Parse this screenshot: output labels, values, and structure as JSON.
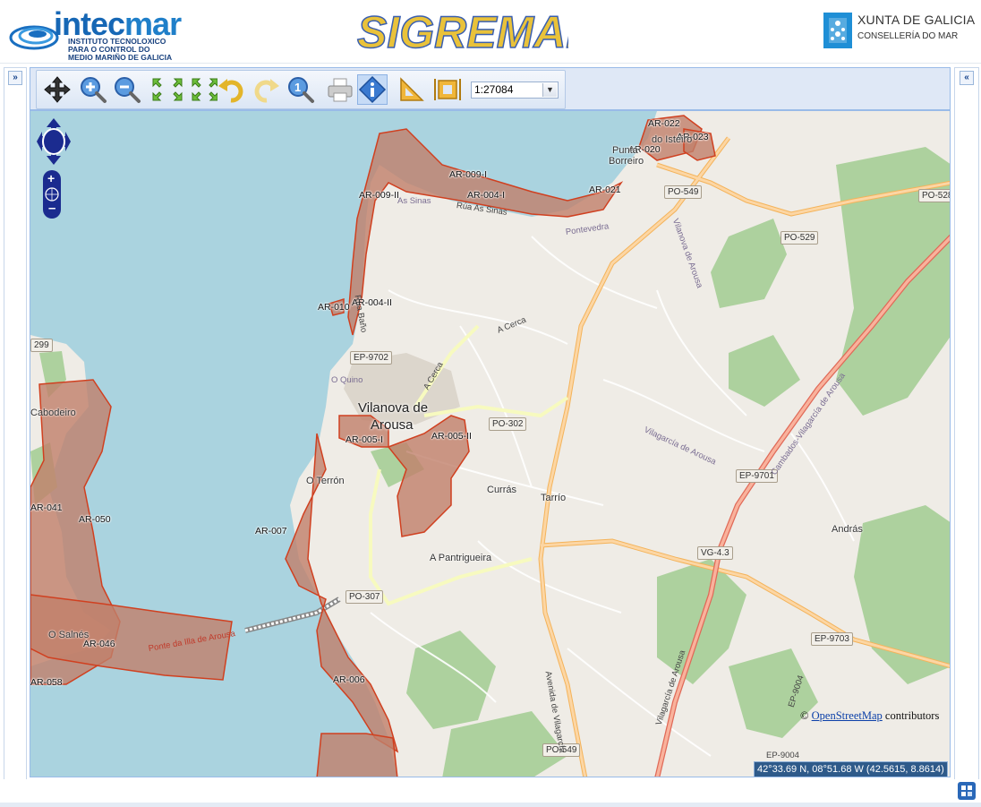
{
  "header": {
    "intecmar": {
      "name_main": "intec",
      "name_accent": "mar",
      "subtitle": [
        "INSTITUTO TECNOLOXICO",
        "PARA O CONTROL DO",
        "MEDIO MARIÑO DE GALICIA"
      ]
    },
    "app_title": "SIGREMAR",
    "xunta": {
      "title": "XUNTA DE GALICIA",
      "subtitle": "CONSELLERÍA DO MAR"
    }
  },
  "toolbar": {
    "buttons": [
      {
        "name": "pan-tool-button",
        "icon": "move-arrows-icon"
      },
      {
        "name": "zoom-in-button",
        "icon": "zoom-in-icon"
      },
      {
        "name": "zoom-out-button",
        "icon": "zoom-out-icon"
      },
      {
        "name": "zoom-extent-button",
        "icon": "zoom-extent-arrows-icon"
      },
      {
        "name": "previous-view-button",
        "icon": "undo-arrow-icon"
      },
      {
        "name": "next-view-button",
        "icon": "redo-arrow-icon"
      },
      {
        "name": "zoom-scale-1-button",
        "icon": "zoom-1-icon"
      },
      {
        "name": "print-button",
        "icon": "printer-icon"
      },
      {
        "name": "info-button",
        "icon": "info-icon",
        "active": true
      },
      {
        "name": "measure-distance-button",
        "icon": "ruler-triangle-icon"
      },
      {
        "name": "measure-area-button",
        "icon": "area-measure-icon"
      }
    ],
    "scale_value": "1:27084"
  },
  "map": {
    "zone_labels": [
      "AR-022",
      "AR-023",
      "AR-020",
      "AR-009-I",
      "AR-004-I",
      "AR-021",
      "AR-009-II",
      "AR-010",
      "AR-004-II",
      "AR-005-I",
      "AR-005-II",
      "AR-041",
      "AR-050",
      "AR-007",
      "AR-046",
      "AR-058",
      "AR-006"
    ],
    "road_refs": [
      "PO-549",
      "PO-528",
      "PO-529",
      "EP-9702",
      "PO-302",
      "EP-9701",
      "VG-4.3",
      "PO-307",
      "EP-9703",
      "PO-549",
      "299"
    ],
    "town_lines": [
      "Vilanova de",
      "Arousa"
    ],
    "places": [
      "O Terrón",
      "Currás",
      "Tarrío",
      "András",
      "A Pantrigueira",
      "Punta",
      "do Isteiro",
      "Borreiro",
      "O Salnés",
      "Cabodeiro"
    ],
    "streets": [
      "Rúa As Sinas",
      "A Cerca",
      "A Cerca",
      "Vilanova de Arousa",
      "Cambados-Vilagarcía de Arousa",
      "Vilagarcía de Arousa",
      "Ponte da Illa de Arousa",
      "Avenida de Vilagarcía",
      "Vilagarcía de Arousa",
      "EP-9004",
      "EP-9004",
      "Pontevedra",
      "Rúa Baño",
      "As Sinas",
      "O Quino"
    ],
    "attribution": {
      "prefix": "©",
      "link": "OpenStreetMap",
      "suffix": "contributors"
    },
    "coordinates": "42°33.69 N, 08°51.68 W (42.5615, 8.8614)",
    "colors": {
      "sea": "#aad3df",
      "land": "#efece6",
      "zone_fill": "#c0806a",
      "zone_stroke": "#d04020",
      "forest": "#add19e",
      "primary_road": "#fcd6a4",
      "trunk_road": "#f9b29c"
    }
  }
}
